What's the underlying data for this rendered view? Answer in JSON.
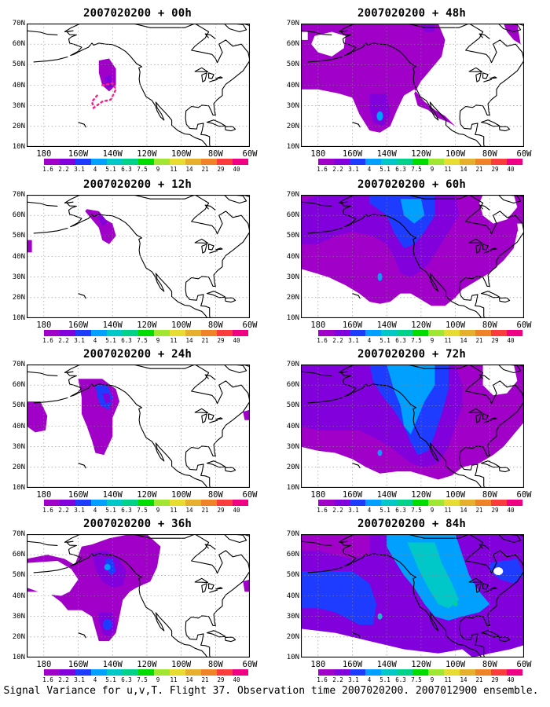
{
  "caption": "Signal Variance for u,v,T. Flight 37. Observation time 2007020200. 2007012900 ensemble.",
  "y_axis_labels": [
    "70N",
    "60N",
    "50N",
    "40N",
    "30N",
    "20N",
    "10N"
  ],
  "x_axis_labels": [
    "180",
    "160W",
    "140W",
    "120W",
    "100W",
    "80W",
    "60W"
  ],
  "colorbar": {
    "colors": [
      "#a000c8",
      "#8200dc",
      "#1e3cff",
      "#00a0ff",
      "#00c8c8",
      "#00d28c",
      "#00dc00",
      "#a0e632",
      "#e6dc32",
      "#e6af2d",
      "#f08228",
      "#fa3c3c",
      "#f00082"
    ],
    "labels": [
      "1.6",
      "2.2",
      "3.1",
      "4",
      "5.1",
      "6.3",
      "7.5",
      "9",
      "11",
      "14",
      "21",
      "29",
      "40"
    ]
  },
  "panels": [
    {
      "id": "p00",
      "title": "2007020200 + 00h",
      "level": 0
    },
    {
      "id": "p48",
      "title": "2007020200 + 48h",
      "level": 4
    },
    {
      "id": "p12",
      "title": "2007020200 + 12h",
      "level": 1
    },
    {
      "id": "p60",
      "title": "2007020200 + 60h",
      "level": 5
    },
    {
      "id": "p24",
      "title": "2007020200 + 24h",
      "level": 2
    },
    {
      "id": "p72",
      "title": "2007020200 + 72h",
      "level": 6
    },
    {
      "id": "p36",
      "title": "2007020200 + 36h",
      "level": 3
    },
    {
      "id": "p84",
      "title": "2007020200 + 84h",
      "level": 7
    }
  ]
}
